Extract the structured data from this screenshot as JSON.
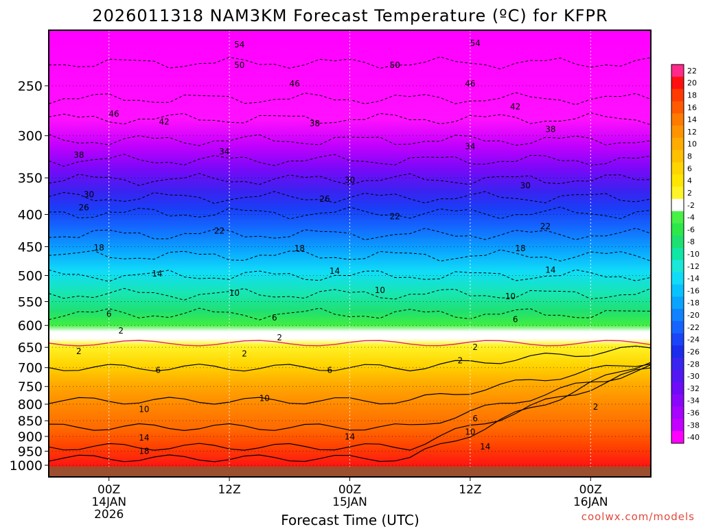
{
  "chart_data": {
    "type": "time-height contour",
    "title": "2026011318 NAM3KM Forecast Temperature (ºC) for KFPR",
    "xlabel": "Forecast Time (UTC)",
    "ylabel": "",
    "credit": "coolwx.com/models",
    "x_range_hours": [
      -6,
      54
    ],
    "y_range_hPa": [
      1013,
      200
    ],
    "x_ticks": [
      {
        "hour": 0,
        "lines": [
          "00Z",
          "14JAN",
          "2026"
        ]
      },
      {
        "hour": 12,
        "lines": [
          "12Z"
        ]
      },
      {
        "hour": 24,
        "lines": [
          "00Z",
          "15JAN"
        ]
      },
      {
        "hour": 36,
        "lines": [
          "12Z"
        ]
      },
      {
        "hour": 48,
        "lines": [
          "00Z",
          "16JAN"
        ]
      }
    ],
    "y_ticks": [
      250,
      300,
      350,
      400,
      450,
      500,
      550,
      600,
      650,
      700,
      750,
      800,
      850,
      900,
      950,
      1000
    ],
    "colorbar": {
      "levels": [
        22,
        20,
        18,
        16,
        14,
        12,
        10,
        8,
        6,
        4,
        2,
        -2,
        -4,
        -6,
        -8,
        -10,
        -12,
        -14,
        -16,
        -18,
        -20,
        -22,
        -24,
        -26,
        -28,
        -30,
        -32,
        -34,
        -36,
        -38,
        -40
      ],
      "colors": [
        "#ff2a8a",
        "#ff1010",
        "#ff3a00",
        "#ff5a00",
        "#ff7a00",
        "#ff9400",
        "#ffac00",
        "#ffc000",
        "#ffd400",
        "#ffe600",
        "#fff428",
        "#ffffff",
        "#48f048",
        "#2ce84a",
        "#1ee070",
        "#10e6a6",
        "#1ae8d8",
        "#10dcf8",
        "#08c2ff",
        "#0aa4ff",
        "#1082ff",
        "#1664ff",
        "#1a44f8",
        "#1c2cec",
        "#3a24f0",
        "#5218f4",
        "#6e0cf8",
        "#8a08fa",
        "#a604fc",
        "#c400fe",
        "#ff00ff"
      ]
    },
    "contour_labels": [
      {
        "hour": 3.5,
        "p": 950,
        "text": "18"
      },
      {
        "hour": 3.5,
        "p": 905,
        "text": "14"
      },
      {
        "hour": 3.5,
        "p": 815,
        "text": "10"
      },
      {
        "hour": 4.9,
        "p": 707,
        "text": "6"
      },
      {
        "hour": -3.0,
        "p": 660,
        "text": "2"
      },
      {
        "hour": 1.2,
        "p": 612,
        "text": "2"
      },
      {
        "hour": 0.0,
        "p": 575,
        "text": "6"
      },
      {
        "hour": -1.0,
        "p": 452,
        "text": "18"
      },
      {
        "hour": -2.5,
        "p": 390,
        "text": "26"
      },
      {
        "hour": -2.0,
        "p": 372,
        "text": "30"
      },
      {
        "hour": -3.0,
        "p": 322,
        "text": "38"
      },
      {
        "hour": 0.5,
        "p": 277,
        "text": "46"
      },
      {
        "hour": 4.8,
        "p": 497,
        "text": "14"
      },
      {
        "hour": 11.0,
        "p": 425,
        "text": "22"
      },
      {
        "hour": 12.5,
        "p": 533,
        "text": "10"
      },
      {
        "hour": 5.5,
        "p": 285,
        "text": "42"
      },
      {
        "hour": 11.5,
        "p": 318,
        "text": "34"
      },
      {
        "hour": 13.0,
        "p": 232,
        "text": "50"
      },
      {
        "hour": 13.0,
        "p": 215,
        "text": "54"
      },
      {
        "hour": 18.5,
        "p": 248,
        "text": "46"
      },
      {
        "hour": 20.5,
        "p": 287,
        "text": "38"
      },
      {
        "hour": 19.0,
        "p": 453,
        "text": "18"
      },
      {
        "hour": 21.5,
        "p": 378,
        "text": "26"
      },
      {
        "hour": 16.5,
        "p": 583,
        "text": "6"
      },
      {
        "hour": 17.0,
        "p": 627,
        "text": "2"
      },
      {
        "hour": 13.5,
        "p": 665,
        "text": "2"
      },
      {
        "hour": 24.0,
        "p": 353,
        "text": "30"
      },
      {
        "hour": 22.0,
        "p": 707,
        "text": "6"
      },
      {
        "hour": 15.5,
        "p": 783,
        "text": "10"
      },
      {
        "hour": 24.0,
        "p": 901,
        "text": "14"
      },
      {
        "hour": 22.5,
        "p": 492,
        "text": "14"
      },
      {
        "hour": 28.5,
        "p": 403,
        "text": "22"
      },
      {
        "hour": 27.0,
        "p": 528,
        "text": "10"
      },
      {
        "hour": 28.5,
        "p": 232,
        "text": "50"
      },
      {
        "hour": 36.5,
        "p": 650,
        "text": "2"
      },
      {
        "hour": 35.0,
        "p": 682,
        "text": "2"
      },
      {
        "hour": 36.5,
        "p": 214,
        "text": "54"
      },
      {
        "hour": 36.0,
        "p": 248,
        "text": "46"
      },
      {
        "hour": 36.0,
        "p": 312,
        "text": "34"
      },
      {
        "hour": 36.5,
        "p": 843,
        "text": "6"
      },
      {
        "hour": 36.0,
        "p": 885,
        "text": "10"
      },
      {
        "hour": 37.5,
        "p": 935,
        "text": "14"
      },
      {
        "hour": 40.5,
        "p": 270,
        "text": "42"
      },
      {
        "hour": 41.5,
        "p": 360,
        "text": "30"
      },
      {
        "hour": 41.0,
        "p": 453,
        "text": "18"
      },
      {
        "hour": 44.0,
        "p": 293,
        "text": "38"
      },
      {
        "hour": 43.5,
        "p": 418,
        "text": "22"
      },
      {
        "hour": 44.0,
        "p": 490,
        "text": "14"
      },
      {
        "hour": 40.0,
        "p": 540,
        "text": "10"
      },
      {
        "hour": 40.5,
        "p": 587,
        "text": "6"
      },
      {
        "hour": 48.5,
        "p": 808,
        "text": "2"
      }
    ]
  }
}
